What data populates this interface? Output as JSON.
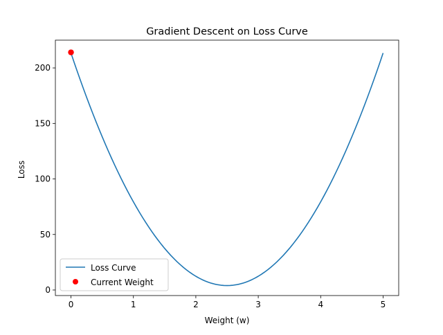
{
  "chart_data": {
    "type": "line",
    "title": "Gradient Descent on Loss Curve",
    "xlabel": "Weight (w)",
    "ylabel": "Loss",
    "xlim": [
      -0.25,
      5.25
    ],
    "ylim": [
      -5,
      225
    ],
    "x_ticks": [
      0,
      1,
      2,
      3,
      4,
      5
    ],
    "y_ticks": [
      0,
      50,
      100,
      150,
      200
    ],
    "grid": false,
    "legend_position": "lower-left",
    "series": [
      {
        "name": "Loss Curve",
        "kind": "line",
        "color": "#1f77b4",
        "function": "loss = 33.5 * (w - 2.5)^2 + 4",
        "x_range": [
          0,
          5
        ],
        "samples": 101
      },
      {
        "name": "Current Weight",
        "kind": "point",
        "color": "#ff0000",
        "x": [
          0
        ],
        "y": [
          214
        ]
      }
    ]
  }
}
